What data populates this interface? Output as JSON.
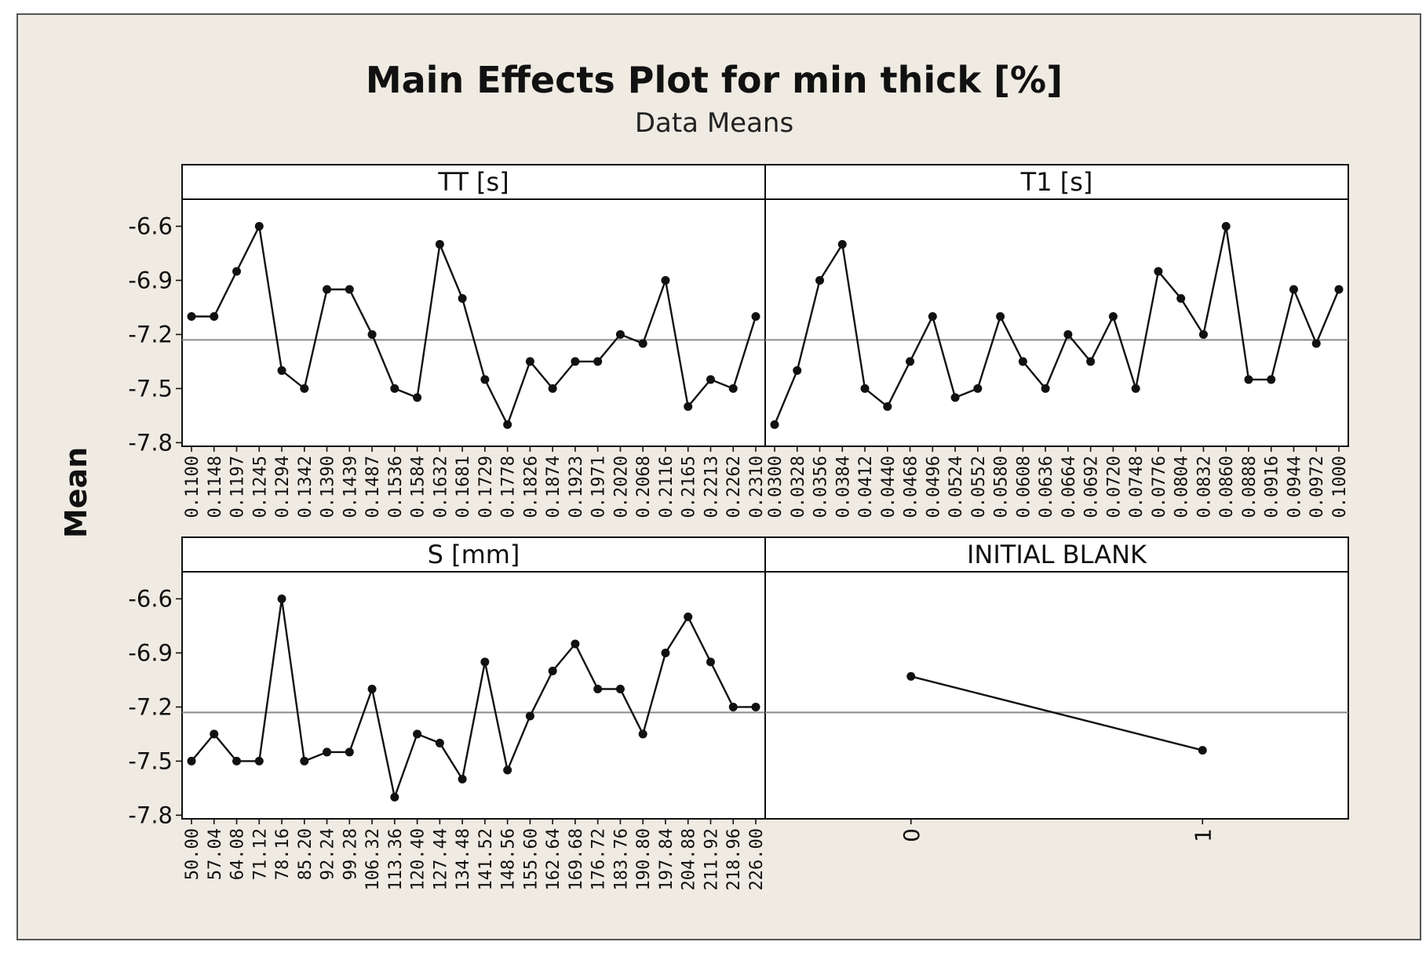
{
  "chart_data": {
    "type": "line",
    "title": "Main Effects Plot for min thick [%]",
    "subtitle": "Data Means",
    "ylabel": "Mean",
    "ylim": [
      -7.8,
      -6.45
    ],
    "yticks": [
      "-6.6",
      "-6.9",
      "-7.2",
      "-7.5",
      "-7.8"
    ],
    "ytick_values": [
      -6.6,
      -6.9,
      -7.2,
      -7.5,
      -7.8
    ],
    "overall_mean": -7.23,
    "panels": [
      {
        "name": "TT [s]",
        "categories": [
          "0.1100",
          "0.1148",
          "0.1197",
          "0.1245",
          "0.1294",
          "0.1342",
          "0.1390",
          "0.1439",
          "0.1487",
          "0.1536",
          "0.1584",
          "0.1632",
          "0.1681",
          "0.1729",
          "0.1778",
          "0.1826",
          "0.1874",
          "0.1923",
          "0.1971",
          "0.2020",
          "0.2068",
          "0.2116",
          "0.2165",
          "0.2213",
          "0.2262",
          "0.2310"
        ],
        "values": [
          -7.1,
          -7.1,
          -6.85,
          -6.6,
          -7.4,
          -7.5,
          -6.95,
          -6.95,
          -7.2,
          -7.5,
          -7.55,
          -6.7,
          -7.0,
          -7.45,
          -7.7,
          -7.35,
          -7.5,
          -7.35,
          -7.35,
          -7.2,
          -7.25,
          -6.9,
          -7.6,
          -7.45,
          -7.5,
          -7.1
        ]
      },
      {
        "name": "T1 [s]",
        "categories": [
          "0.0300",
          "0.0328",
          "0.0356",
          "0.0384",
          "0.0412",
          "0.0440",
          "0.0468",
          "0.0496",
          "0.0524",
          "0.0552",
          "0.0580",
          "0.0608",
          "0.0636",
          "0.0664",
          "0.0692",
          "0.0720",
          "0.0748",
          "0.0776",
          "0.0804",
          "0.0832",
          "0.0860",
          "0.0888",
          "0.0916",
          "0.0944",
          "0.0972",
          "0.1000"
        ],
        "values": [
          -7.7,
          -7.4,
          -6.9,
          -6.7,
          -7.5,
          -7.6,
          -7.35,
          -7.1,
          -7.55,
          -7.5,
          -7.1,
          -7.35,
          -7.5,
          -7.2,
          -7.35,
          -7.1,
          -7.5,
          -6.85,
          -7.0,
          -7.2,
          -6.6,
          -7.45,
          -7.45,
          -6.95,
          -7.25,
          -6.95
        ]
      },
      {
        "name": "S [mm]",
        "categories": [
          "50.00",
          "57.04",
          "64.08",
          "71.12",
          "78.16",
          "85.20",
          "92.24",
          "99.28",
          "106.32",
          "113.36",
          "120.40",
          "127.44",
          "134.48",
          "141.52",
          "148.56",
          "155.60",
          "162.64",
          "169.68",
          "176.72",
          "183.76",
          "190.80",
          "197.84",
          "204.88",
          "211.92",
          "218.96",
          "226.00"
        ],
        "values": [
          -7.5,
          -7.35,
          -7.5,
          -7.5,
          -6.6,
          -7.5,
          -7.45,
          -7.45,
          -7.1,
          -7.7,
          -7.35,
          -7.4,
          -7.6,
          -6.95,
          -7.55,
          -7.25,
          -7.0,
          -6.85,
          -7.1,
          -7.1,
          -7.35,
          -6.9,
          -6.7,
          -6.95,
          -7.2,
          -7.2
        ]
      },
      {
        "name": "INITIAL BLANK",
        "categories": [
          "0",
          "1"
        ],
        "values": [
          -7.03,
          -7.44
        ]
      }
    ]
  }
}
